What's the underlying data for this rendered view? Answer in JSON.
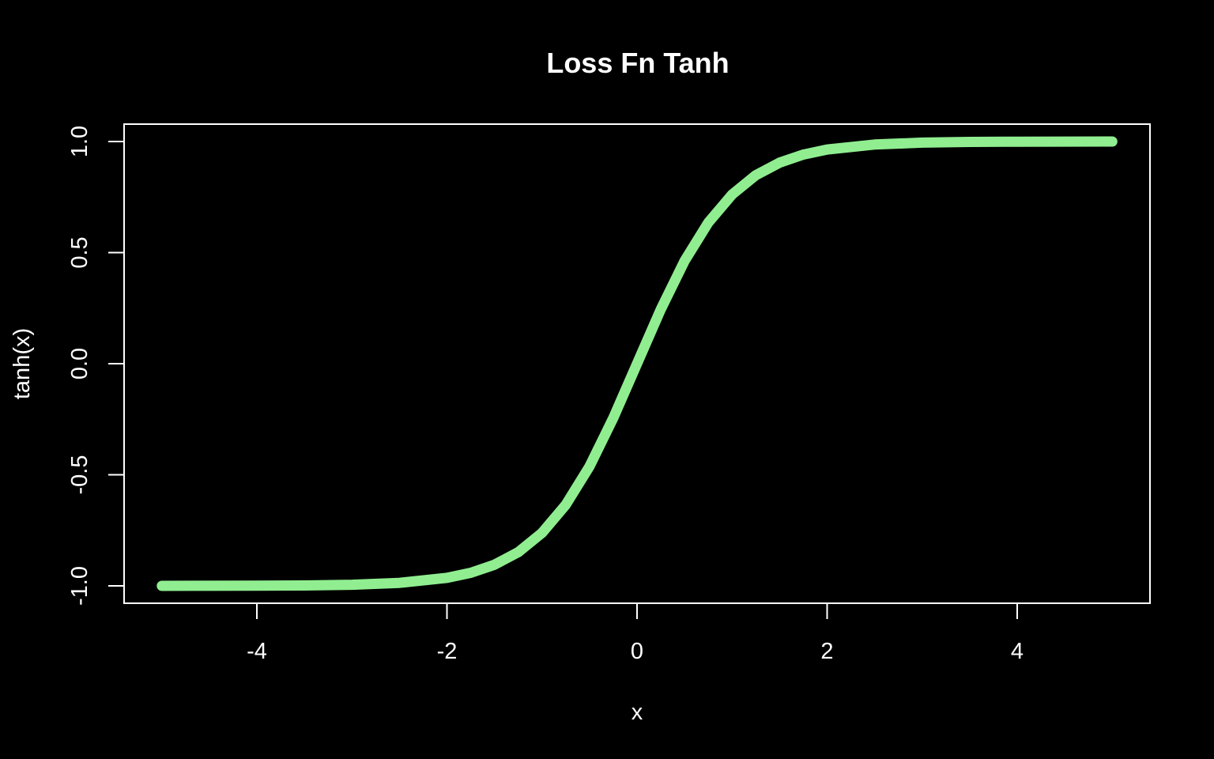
{
  "chart_data": {
    "type": "line",
    "title": "Loss Fn Tanh",
    "xlabel": "x",
    "ylabel": "tanh(x)",
    "xlim": [
      -5,
      5
    ],
    "ylim": [
      -1,
      1
    ],
    "x_ticks": [
      -4,
      -2,
      0,
      2,
      4
    ],
    "x_tick_labels": [
      "-4",
      "-2",
      "0",
      "2",
      "4"
    ],
    "y_ticks": [
      -1.0,
      -0.5,
      0.0,
      0.5,
      1.0
    ],
    "y_tick_labels": [
      "-1.0",
      "-0.5",
      "0.0",
      "0.5",
      "1.0"
    ],
    "grid": false,
    "series": [
      {
        "color": "#90EE90",
        "x": [
          -5,
          -4.5,
          -4,
          -3.5,
          -3,
          -2.5,
          -2,
          -1.75,
          -1.5,
          -1.25,
          -1,
          -0.75,
          -0.5,
          -0.25,
          0,
          0.25,
          0.5,
          0.75,
          1,
          1.25,
          1.5,
          1.75,
          2,
          2.5,
          3,
          3.5,
          4,
          4.5,
          5
        ],
        "y": [
          -0.9999,
          -0.9998,
          -0.9993,
          -0.9982,
          -0.9951,
          -0.9866,
          -0.964,
          -0.9414,
          -0.9051,
          -0.8483,
          -0.7616,
          -0.6351,
          -0.4621,
          -0.2449,
          0,
          0.2449,
          0.4621,
          0.6351,
          0.7616,
          0.8483,
          0.9051,
          0.9414,
          0.964,
          0.9866,
          0.9951,
          0.9982,
          0.9993,
          0.9998,
          0.9999
        ]
      }
    ]
  },
  "colors": {
    "background": "#000000",
    "foreground": "#ffffff",
    "line": "#90EE90"
  }
}
